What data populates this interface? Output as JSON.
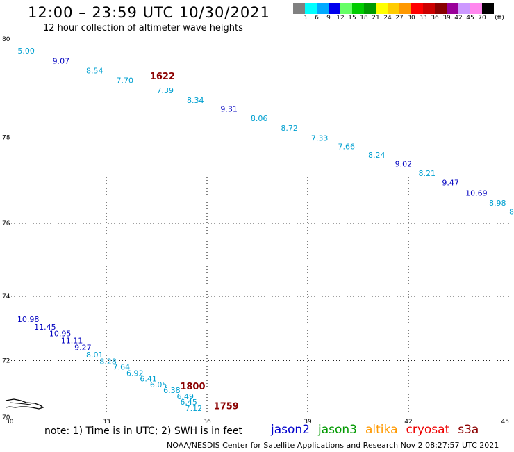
{
  "header": {
    "title": "12:00 – 23:59 UTC 10/30/2021",
    "subtitle": "12 hour collection of altimeter wave heights"
  },
  "legend": {
    "unit": "(ft)",
    "bins": [
      {
        "label": "3",
        "color": "#808080"
      },
      {
        "label": "6",
        "color": "#00ffff"
      },
      {
        "label": "9",
        "color": "#00aaff"
      },
      {
        "label": "12",
        "color": "#0000ee"
      },
      {
        "label": "15",
        "color": "#66ff66"
      },
      {
        "label": "18",
        "color": "#00cc00"
      },
      {
        "label": "21",
        "color": "#009900"
      },
      {
        "label": "24",
        "color": "#ffff00"
      },
      {
        "label": "27",
        "color": "#ffcc00"
      },
      {
        "label": "30",
        "color": "#ff9900"
      },
      {
        "label": "33",
        "color": "#ff0000"
      },
      {
        "label": "36",
        "color": "#cc0000"
      },
      {
        "label": "39",
        "color": "#880000"
      },
      {
        "label": "42",
        "color": "#990099"
      },
      {
        "label": "45",
        "color": "#cc99ff"
      },
      {
        "label": "70",
        "color": "#ff88ee"
      },
      {
        "label": "",
        "color": "#000000"
      }
    ]
  },
  "map": {
    "lon_range": [
      30,
      45
    ],
    "lat_range": [
      70,
      80
    ],
    "x_ticks": [
      "30",
      "33",
      "36",
      "39",
      "42",
      "45"
    ],
    "y_ticks": [
      "80",
      "78",
      "76",
      "74",
      "72",
      "70"
    ],
    "color_scale": {
      "cyan": "#00a0d0",
      "blue": "#0000c0",
      "time": "#8b0000"
    },
    "track1": [
      {
        "lon": 30.36,
        "lat": 79.7,
        "v": "5.00",
        "c": "cyan"
      },
      {
        "lon": 31.4,
        "lat": 79.5,
        "v": "9.07",
        "c": "blue"
      },
      {
        "lon": 32.4,
        "lat": 79.3,
        "v": "8.54",
        "c": "cyan"
      },
      {
        "lon": 33.3,
        "lat": 79.1,
        "v": "7.70",
        "c": "cyan"
      },
      {
        "lon": 34.5,
        "lat": 78.9,
        "v": "7.39",
        "c": "cyan"
      },
      {
        "lon": 35.4,
        "lat": 78.7,
        "v": "8.34",
        "c": "cyan"
      },
      {
        "lon": 36.4,
        "lat": 78.52,
        "v": "9.31",
        "c": "blue"
      },
      {
        "lon": 37.3,
        "lat": 78.33,
        "v": "8.06",
        "c": "cyan"
      },
      {
        "lon": 38.2,
        "lat": 78.13,
        "v": "8.72",
        "c": "cyan"
      },
      {
        "lon": 39.1,
        "lat": 77.92,
        "v": "7.33",
        "c": "cyan"
      },
      {
        "lon": 39.9,
        "lat": 77.72,
        "v": "7.66",
        "c": "cyan"
      },
      {
        "lon": 40.8,
        "lat": 77.52,
        "v": "8.24",
        "c": "cyan"
      },
      {
        "lon": 41.6,
        "lat": 77.32,
        "v": "9.02",
        "c": "blue"
      },
      {
        "lon": 42.3,
        "lat": 77.1,
        "v": "8.21",
        "c": "cyan"
      },
      {
        "lon": 43.0,
        "lat": 76.88,
        "v": "9.47",
        "c": "blue"
      },
      {
        "lon": 43.7,
        "lat": 76.64,
        "v": "10.69",
        "c": "blue"
      },
      {
        "lon": 44.4,
        "lat": 76.4,
        "v": "8.98",
        "c": "cyan"
      },
      {
        "lon": 45.0,
        "lat": 76.2,
        "v": "8.",
        "c": "cyan"
      }
    ],
    "track2": [
      {
        "lon": 30.35,
        "lat": 73.2,
        "v": "10.98",
        "c": "blue"
      },
      {
        "lon": 30.85,
        "lat": 72.96,
        "v": "11.45",
        "c": "blue"
      },
      {
        "lon": 31.3,
        "lat": 72.76,
        "v": "10.95",
        "c": "blue"
      },
      {
        "lon": 31.65,
        "lat": 72.54,
        "v": "11.11",
        "c": "blue"
      },
      {
        "lon": 32.05,
        "lat": 72.32,
        "v": "9.27",
        "c": "blue"
      },
      {
        "lon": 32.4,
        "lat": 72.1,
        "v": "8.01",
        "c": "cyan"
      },
      {
        "lon": 32.8,
        "lat": 71.88,
        "v": "8.28",
        "c": "cyan"
      },
      {
        "lon": 33.2,
        "lat": 71.68,
        "v": "7.64",
        "c": "cyan"
      },
      {
        "lon": 33.6,
        "lat": 71.46,
        "v": "6.92",
        "c": "cyan"
      },
      {
        "lon": 34.0,
        "lat": 71.26,
        "v": "6.41",
        "c": "cyan"
      },
      {
        "lon": 34.3,
        "lat": 71.06,
        "v": "6.05",
        "c": "cyan"
      },
      {
        "lon": 34.7,
        "lat": 70.86,
        "v": "6.38",
        "c": "cyan"
      },
      {
        "lon": 35.1,
        "lat": 70.64,
        "v": "6.49",
        "c": "cyan"
      },
      {
        "lon": 35.2,
        "lat": 70.44,
        "v": "6.45",
        "c": "cyan"
      },
      {
        "lon": 35.35,
        "lat": 70.22,
        "v": "7.12",
        "c": "cyan"
      }
    ],
    "time_labels": [
      {
        "lon": 34.3,
        "lat": 79.18,
        "v": "1622"
      },
      {
        "lon": 35.2,
        "lat": 70.98,
        "v": "1800"
      },
      {
        "lon": 36.2,
        "lat": 70.28,
        "v": "1759"
      }
    ]
  },
  "note": "note: 1) Time is in UTC; 2) SWH is in feet",
  "satellites": [
    {
      "name": "jason2",
      "color": "#0000cc"
    },
    {
      "name": "jason3",
      "color": "#009900"
    },
    {
      "name": "altika",
      "color": "#ff9900"
    },
    {
      "name": "cryosat",
      "color": "#ee0000"
    },
    {
      "name": "s3a",
      "color": "#8b0000"
    }
  ],
  "footer": "NOAA/NESDIS Center for Satellite Applications and Research    Nov  2 08:27:57 UTC 2021"
}
